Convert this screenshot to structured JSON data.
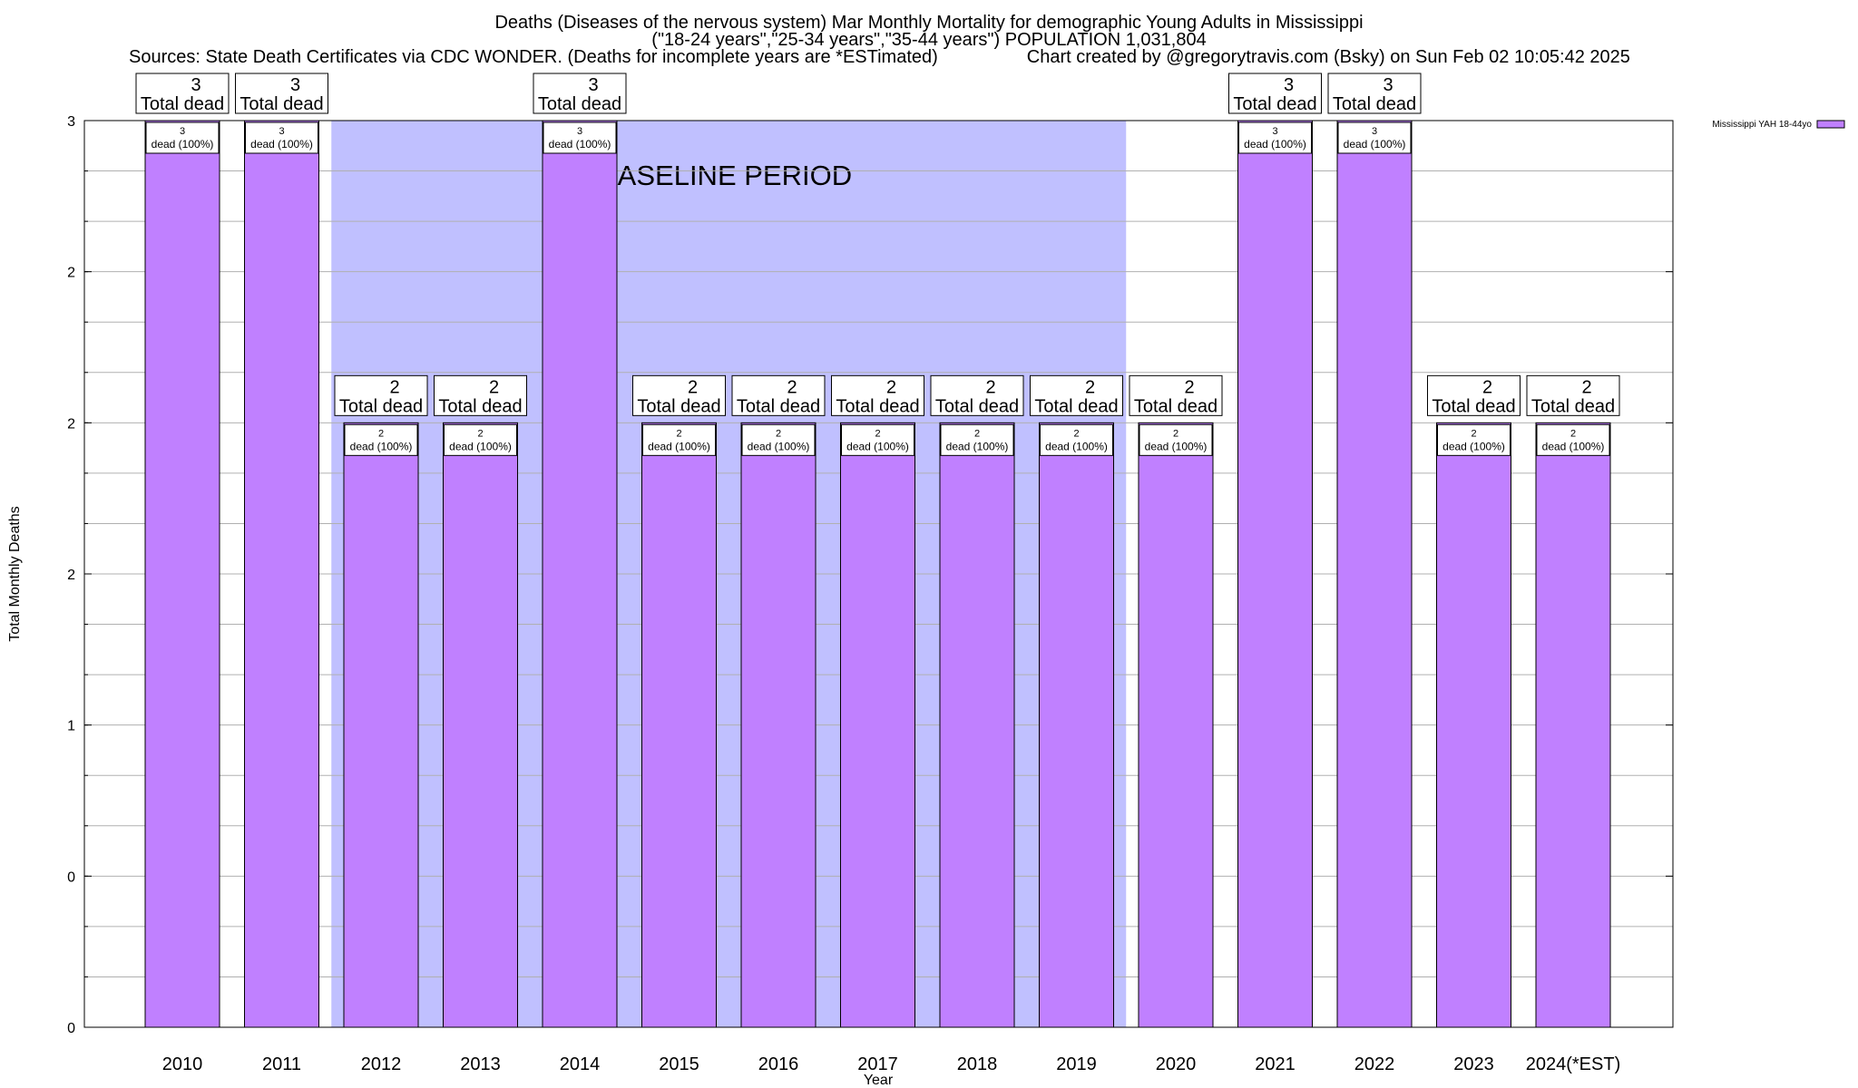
{
  "header": {
    "title_line1": "Deaths (Diseases of the nervous system) Mar Monthly Mortality for demographic Young Adults in Mississippi",
    "title_line2": "(\"18-24 years\",\"25-34 years\",\"35-44 years\") POPULATION 1,031,804",
    "sources": "Sources: State Death Certificates via CDC WONDER. (Deaths for incomplete years are *ESTimated)",
    "credit": "Chart created by @gregorytravis.com (Bsky) on Sun Feb 02 10:05:42 2025"
  },
  "chart_data": {
    "type": "bar",
    "xlabel": "Year",
    "ylabel": "Total Monthly Deaths",
    "ylim": [
      0,
      3
    ],
    "y_ticks": [
      {
        "value": 0,
        "label": "0"
      },
      {
        "value": 0.5,
        "label": "0"
      },
      {
        "value": 1,
        "label": "1"
      },
      {
        "value": 1.5,
        "label": "2"
      },
      {
        "value": 2,
        "label": "2"
      },
      {
        "value": 2.5,
        "label": "2"
      },
      {
        "value": 3,
        "label": "3"
      }
    ],
    "grid": true,
    "legend_position": "top-right",
    "categories": [
      "2010",
      "2011",
      "2012",
      "2013",
      "2014",
      "2015",
      "2016",
      "2017",
      "2018",
      "2019",
      "2020",
      "2021",
      "2022",
      "2023",
      "2024(*EST)"
    ],
    "series": [
      {
        "name": "Mississippi YAH 18-44yo",
        "color": "#c080ff",
        "values": [
          3,
          3,
          2,
          2,
          3,
          2,
          2,
          2,
          2,
          2,
          2,
          3,
          3,
          2,
          2
        ]
      }
    ],
    "total_labels": [
      "3",
      "3",
      "2",
      "2",
      "3",
      "2",
      "2",
      "2",
      "2",
      "2",
      "2",
      "3",
      "3",
      "2",
      "2"
    ],
    "total_suffix": "Total dead",
    "inner_labels": [
      "3",
      "3",
      "2",
      "2",
      "3",
      "2",
      "2",
      "2",
      "2",
      "2",
      "2",
      "3",
      "3",
      "2",
      "2"
    ],
    "inner_suffix": "dead (100%)",
    "baseline": {
      "label": "BASELINE PERIOD",
      "start": "2012",
      "end": "2019",
      "color": "#c0c0ff"
    }
  }
}
